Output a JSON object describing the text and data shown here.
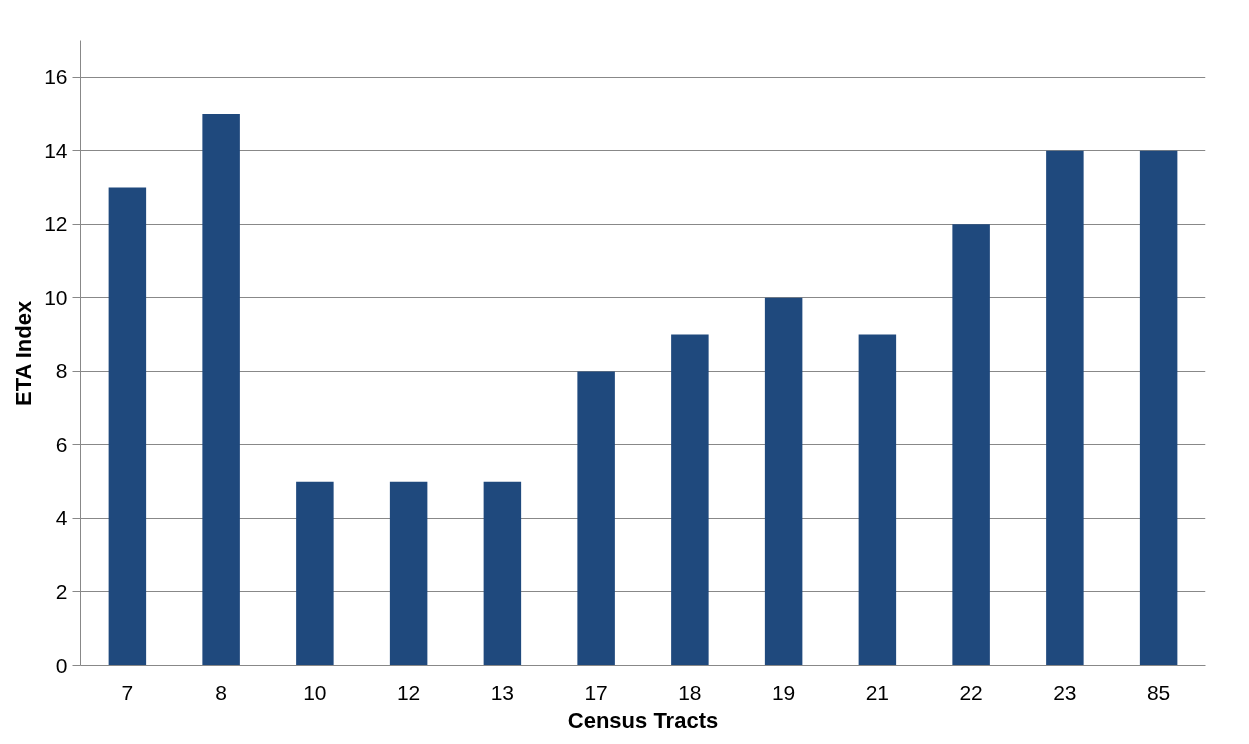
{
  "chart_data": {
    "type": "bar",
    "xlabel": "Census Tracts",
    "ylabel": "ETA Index",
    "categories": [
      "7",
      "8",
      "10",
      "12",
      "13",
      "17",
      "18",
      "19",
      "21",
      "22",
      "23",
      "85"
    ],
    "values": [
      13,
      15,
      5,
      5,
      5,
      8,
      9,
      10,
      9,
      12,
      14,
      14
    ],
    "color": "#1f497d",
    "ylim": [
      0,
      17
    ],
    "yticks": [
      0,
      2,
      4,
      6,
      8,
      10,
      12,
      14,
      16
    ],
    "grid": "y"
  }
}
